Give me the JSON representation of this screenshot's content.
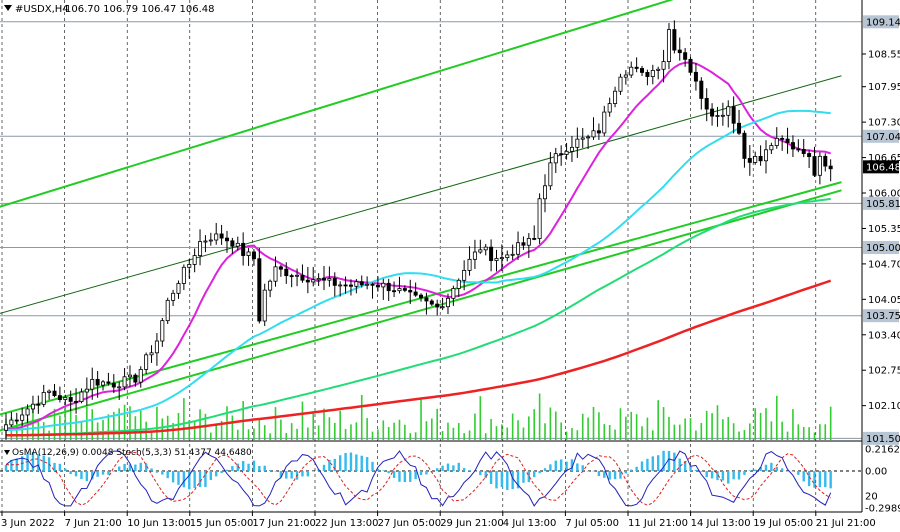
{
  "chart_data": {
    "type": "candlestick",
    "title": "#USDX,H4",
    "ohlc_label": "106.70 106.79 106.47 106.48",
    "y_axis": {
      "min": 101.47,
      "max": 109.54,
      "ticks": [
        "108.55",
        "107.95",
        "107.30",
        "106.65",
        "106.00",
        "105.35",
        "104.70",
        "104.05",
        "103.40",
        "102.75",
        "102.10"
      ]
    },
    "price_levels": [
      {
        "value": 109.14,
        "label": "109.14"
      },
      {
        "value": 107.04,
        "label": "107.04"
      },
      {
        "value": 105.81,
        "label": "105.81"
      },
      {
        "value": 105.0,
        "label": "105.00"
      },
      {
        "value": 103.75,
        "label": "103.75"
      },
      {
        "value": 101.5,
        "label": "101.50"
      }
    ],
    "current_price": {
      "value": 106.48,
      "label": "106.48"
    },
    "x_labels": [
      "3 Jun 2022",
      "7 Jun 21:00",
      "10 Jun 13:00",
      "15 Jun 05:00",
      "17 Jun 21:00",
      "22 Jun 13:00",
      "27 Jun 05:00",
      "29 Jun 21:00",
      "4 Jul 13:00",
      "7 Jul 05:00",
      "11 Jul 21:00",
      "14 Jul 13:00",
      "19 Jul 05:00",
      "21 Jul 21:00"
    ],
    "close_path": [
      [
        0,
        101.75
      ],
      [
        4,
        102.05
      ],
      [
        8,
        102.35
      ],
      [
        12,
        102.15
      ],
      [
        16,
        102.55
      ],
      [
        20,
        102.5
      ],
      [
        24,
        102.6
      ],
      [
        28,
        103.3
      ],
      [
        30,
        104.0
      ],
      [
        32,
        104.4
      ],
      [
        34,
        104.7
      ],
      [
        36,
        105.1
      ],
      [
        38,
        105.2
      ],
      [
        40,
        105.2
      ],
      [
        42,
        105.1
      ],
      [
        44,
        104.9
      ],
      [
        46,
        104.8
      ],
      [
        47,
        103.7
      ],
      [
        48,
        104.2
      ],
      [
        50,
        104.6
      ],
      [
        52,
        104.55
      ],
      [
        56,
        104.45
      ],
      [
        60,
        104.35
      ],
      [
        64,
        104.3
      ],
      [
        68,
        104.35
      ],
      [
        72,
        104.25
      ],
      [
        76,
        104.05
      ],
      [
        80,
        103.9
      ],
      [
        82,
        104.1
      ],
      [
        84,
        104.45
      ],
      [
        86,
        104.75
      ],
      [
        88,
        105.0
      ],
      [
        90,
        104.85
      ],
      [
        92,
        104.8
      ],
      [
        94,
        104.95
      ],
      [
        96,
        105.05
      ],
      [
        98,
        105.15
      ],
      [
        99,
        105.9
      ],
      [
        100,
        106.2
      ],
      [
        101,
        106.5
      ],
      [
        102,
        106.65
      ],
      [
        104,
        106.85
      ],
      [
        106,
        106.95
      ],
      [
        108,
        107.0
      ],
      [
        110,
        107.15
      ],
      [
        112,
        107.7
      ],
      [
        114,
        108.2
      ],
      [
        116,
        108.3
      ],
      [
        118,
        108.15
      ],
      [
        120,
        108.25
      ],
      [
        122,
        108.45
      ],
      [
        123,
        109.0
      ],
      [
        124,
        108.7
      ],
      [
        126,
        108.5
      ],
      [
        128,
        108.0
      ],
      [
        130,
        107.6
      ],
      [
        132,
        107.4
      ],
      [
        134,
        107.6
      ],
      [
        136,
        107.1
      ],
      [
        137,
        106.65
      ],
      [
        138,
        106.65
      ],
      [
        140,
        106.6
      ],
      [
        142,
        106.9
      ],
      [
        144,
        106.95
      ],
      [
        146,
        106.85
      ],
      [
        148,
        106.8
      ],
      [
        150,
        106.4
      ],
      [
        151,
        106.75
      ],
      [
        152,
        106.55
      ],
      [
        153,
        106.48
      ]
    ],
    "channel_lines": [
      {
        "color": "#22cc22",
        "width": 2,
        "points": [
          [
            -8,
            105.54
          ],
          [
            140,
            110.05
          ]
        ]
      },
      {
        "color": "#22cc22",
        "width": 2,
        "points": [
          [
            -8,
            101.45
          ],
          [
            155,
            106.05
          ]
        ]
      },
      {
        "color": "#22cc22",
        "width": 2,
        "points": [
          [
            -8,
            101.75
          ],
          [
            155,
            106.2
          ]
        ]
      },
      {
        "color": "#116611",
        "width": 1,
        "points": [
          [
            -8,
            103.6
          ],
          [
            155,
            108.15
          ]
        ]
      }
    ],
    "ma_series": [
      {
        "name": "",
        "color": "#dd22dd",
        "width": 2,
        "period": 12
      },
      {
        "name": "",
        "color": "#33ddee",
        "width": 2,
        "period": 45
      },
      {
        "name": "",
        "color": "#22dd77",
        "width": 2,
        "period": 110
      },
      {
        "name": "",
        "color": "#ee2222",
        "width": 2.5,
        "period": 180
      }
    ],
    "oscillator": {
      "label": "OsMA(12,26,9) 0.0048  Stoch(5,3,3) 51.4377 44.6480",
      "scale_labels": [
        "0.2162",
        "0.00",
        "20",
        "-0.2989"
      ],
      "osma_color": "#33bbee",
      "stoch_main_color": "#2222bb",
      "stoch_signal_color": "#dd2222"
    },
    "colors": {
      "candle": "#000000",
      "volume": "#33cc33",
      "grid": "#000000",
      "level_line": "#8899aa",
      "label_bg": "#b8c6d4",
      "price_label_bg": "#000000",
      "price_label_text": "#ffffff"
    }
  }
}
